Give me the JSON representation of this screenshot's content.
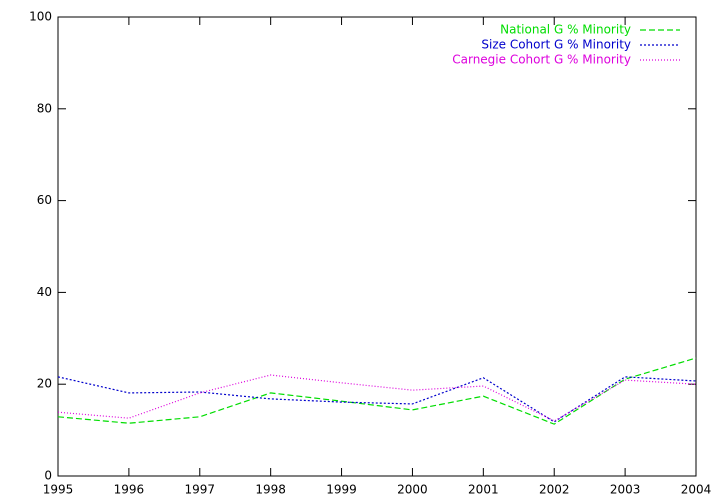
{
  "chart_data": {
    "type": "line",
    "x": [
      1995,
      1996,
      1997,
      1998,
      1999,
      2000,
      2001,
      2002,
      2003,
      2004
    ],
    "xlim": [
      1995,
      2004
    ],
    "xticks": [
      1995,
      1996,
      1997,
      1998,
      1999,
      2000,
      2001,
      2002,
      2003,
      2004
    ],
    "ylim": [
      0,
      100
    ],
    "yticks": [
      0,
      20,
      40,
      60,
      80,
      100
    ],
    "grid": false,
    "legend": "upper right",
    "series": [
      {
        "name": "National G % Minority",
        "color": "#00dd00",
        "values": [
          12.9,
          11.5,
          12.9,
          18.1,
          16.3,
          14.4,
          17.4,
          11.3,
          21.1,
          25.7
        ]
      },
      {
        "name": "Size Cohort G % Minority",
        "color": "#0000cc",
        "values": [
          21.6,
          18.1,
          18.3,
          16.8,
          16.1,
          15.7,
          21.4,
          11.8,
          21.6,
          20.7
        ]
      },
      {
        "name": "Carnegie Cohort G % Minority",
        "color": "#dd00dd",
        "values": [
          13.9,
          12.6,
          18.1,
          22.0,
          20.3,
          18.7,
          19.6,
          12.0,
          20.9,
          20.0
        ]
      }
    ]
  }
}
